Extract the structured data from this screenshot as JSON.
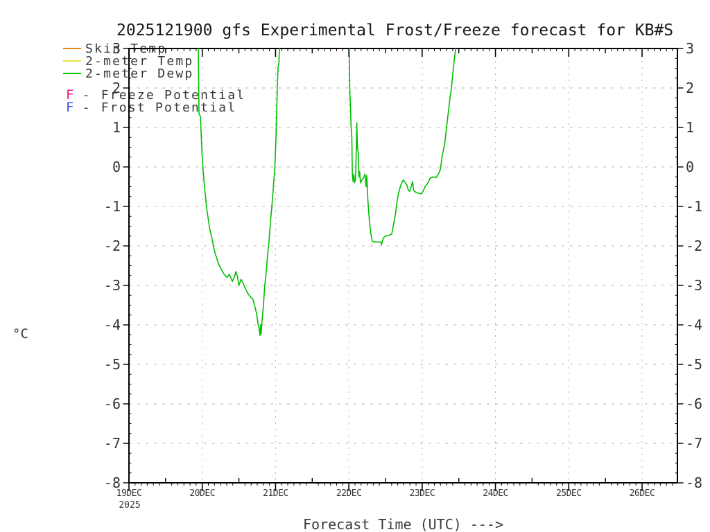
{
  "title": "2025121900 gfs Experimental Frost/Freeze forecast for KB#S",
  "legend": {
    "series": [
      {
        "label": "Skin Temp",
        "color": "#e8821e"
      },
      {
        "label": "2-meter Temp",
        "color": "#e2e24a"
      },
      {
        "label": "2-meter Dewp",
        "color": "#00bf00"
      }
    ],
    "flags": [
      {
        "symbol": "F",
        "color": "#e8197e",
        "label": "Freeze Potential"
      },
      {
        "symbol": "F",
        "color": "#3a50e8",
        "label": "Frost Potential"
      }
    ],
    "flag_separator": "-"
  },
  "axes": {
    "ylabel": "°C",
    "xlabel": "Forecast Time (UTC) --->",
    "year": "2025"
  },
  "chart_data": {
    "type": "line",
    "title": "2025121900 gfs Experimental Frost/Freeze forecast for KB#S",
    "xlabel": "Forecast Time (UTC) --->",
    "ylabel": "°C",
    "grid": true,
    "legend_position": "top-left",
    "x_axis": {
      "tick_labels": [
        "19DEC",
        "20DEC",
        "21DEC",
        "22DEC",
        "23DEC",
        "24DEC",
        "25DEC",
        "26DEC"
      ],
      "year_label": "2025",
      "range_days": [
        0,
        7.48
      ],
      "minor_ticks_per_day": 12
    },
    "y_axis": {
      "min": -8,
      "max": 3,
      "step": 1,
      "unit": "°C"
    },
    "series": [
      {
        "name": "Skin Temp",
        "color": "#e8821e",
        "segments": []
      },
      {
        "name": "2-meter Temp",
        "color": "#e2e24a",
        "segments": []
      },
      {
        "name": "2-meter Dewp",
        "color": "#00bf00",
        "segments": [
          [
            [
              0.946,
              3.0
            ],
            [
              0.955,
              1.35
            ],
            [
              0.975,
              1.28
            ],
            [
              0.985,
              0.85
            ],
            [
              0.995,
              0.4
            ],
            [
              1.01,
              -0.05
            ],
            [
              1.03,
              -0.5
            ],
            [
              1.06,
              -1.05
            ],
            [
              1.1,
              -1.55
            ],
            [
              1.13,
              -1.8
            ],
            [
              1.17,
              -2.15
            ],
            [
              1.22,
              -2.45
            ],
            [
              1.29,
              -2.7
            ],
            [
              1.34,
              -2.8
            ],
            [
              1.37,
              -2.72
            ],
            [
              1.41,
              -2.9
            ],
            [
              1.44,
              -2.78
            ],
            [
              1.46,
              -2.65
            ],
            [
              1.48,
              -2.78
            ],
            [
              1.5,
              -3.0
            ],
            [
              1.53,
              -2.85
            ],
            [
              1.56,
              -2.95
            ],
            [
              1.58,
              -3.05
            ],
            [
              1.62,
              -3.2
            ],
            [
              1.66,
              -3.3
            ],
            [
              1.69,
              -3.35
            ],
            [
              1.72,
              -3.55
            ],
            [
              1.74,
              -3.7
            ],
            [
              1.76,
              -3.95
            ],
            [
              1.78,
              -4.15
            ],
            [
              1.787,
              -4.27
            ],
            [
              1.795,
              -4.0
            ],
            [
              1.803,
              -4.23
            ],
            [
              1.815,
              -3.9
            ],
            [
              1.835,
              -3.5
            ],
            [
              1.85,
              -3.05
            ],
            [
              1.87,
              -2.7
            ],
            [
              1.89,
              -2.25
            ],
            [
              1.91,
              -1.9
            ],
            [
              1.93,
              -1.4
            ],
            [
              1.95,
              -1.0
            ],
            [
              1.97,
              -0.5
            ],
            [
              1.99,
              0.0
            ],
            [
              2.005,
              0.7
            ],
            [
              2.015,
              1.4
            ],
            [
              2.025,
              2.1
            ],
            [
              2.035,
              2.55
            ],
            [
              2.045,
              2.62
            ],
            [
              2.053,
              3.0
            ]
          ],
          [
            [
              3.007,
              3.0
            ],
            [
              3.012,
              2.0
            ],
            [
              3.02,
              1.6
            ],
            [
              3.03,
              1.05
            ],
            [
              3.04,
              0.75
            ],
            [
              3.048,
              -0.2
            ],
            [
              3.058,
              -0.37
            ],
            [
              3.068,
              -0.18
            ],
            [
              3.078,
              -0.4
            ],
            [
              3.09,
              -0.33
            ],
            [
              3.1,
              0.3
            ],
            [
              3.108,
              1.12
            ],
            [
              3.118,
              0.45
            ],
            [
              3.128,
              0.38
            ],
            [
              3.138,
              -0.25
            ],
            [
              3.148,
              -0.12
            ],
            [
              3.158,
              -0.4
            ],
            [
              3.18,
              -0.32
            ],
            [
              3.2,
              -0.28
            ],
            [
              3.22,
              -0.18
            ],
            [
              3.235,
              -0.5
            ],
            [
              3.245,
              -0.22
            ],
            [
              3.26,
              -0.85
            ],
            [
              3.28,
              -1.35
            ],
            [
              3.3,
              -1.7
            ],
            [
              3.32,
              -1.88
            ],
            [
              3.36,
              -1.9
            ],
            [
              3.4,
              -1.9
            ],
            [
              3.435,
              -1.9
            ],
            [
              3.445,
              -1.97
            ],
            [
              3.47,
              -1.8
            ],
            [
              3.5,
              -1.75
            ],
            [
              3.545,
              -1.73
            ],
            [
              3.585,
              -1.7
            ],
            [
              3.61,
              -1.45
            ],
            [
              3.635,
              -1.2
            ],
            [
              3.66,
              -0.85
            ],
            [
              3.68,
              -0.65
            ],
            [
              3.71,
              -0.45
            ],
            [
              3.74,
              -0.33
            ],
            [
              3.765,
              -0.38
            ],
            [
              3.79,
              -0.45
            ],
            [
              3.81,
              -0.58
            ],
            [
              3.83,
              -0.62
            ],
            [
              3.85,
              -0.5
            ],
            [
              3.868,
              -0.37
            ],
            [
              3.885,
              -0.6
            ],
            [
              3.92,
              -0.65
            ],
            [
              3.96,
              -0.67
            ],
            [
              3.99,
              -0.68
            ],
            [
              4.01,
              -0.62
            ],
            [
              4.04,
              -0.5
            ],
            [
              4.08,
              -0.4
            ],
            [
              4.11,
              -0.28
            ],
            [
              4.15,
              -0.25
            ],
            [
              4.19,
              -0.27
            ],
            [
              4.23,
              -0.15
            ],
            [
              4.25,
              -0.05
            ],
            [
              4.27,
              0.25
            ],
            [
              4.29,
              0.42
            ],
            [
              4.31,
              0.62
            ],
            [
              4.33,
              0.95
            ],
            [
              4.345,
              1.2
            ],
            [
              4.36,
              1.42
            ],
            [
              4.38,
              1.75
            ],
            [
              4.4,
              2.0
            ],
            [
              4.42,
              2.4
            ],
            [
              4.44,
              2.75
            ],
            [
              4.458,
              3.0
            ]
          ]
        ]
      }
    ],
    "freeze_potential_markers": [],
    "frost_potential_markers": [],
    "colors": {
      "axis": "#000000",
      "grid": "#b4b4b4",
      "tick_text": "#333333"
    }
  }
}
